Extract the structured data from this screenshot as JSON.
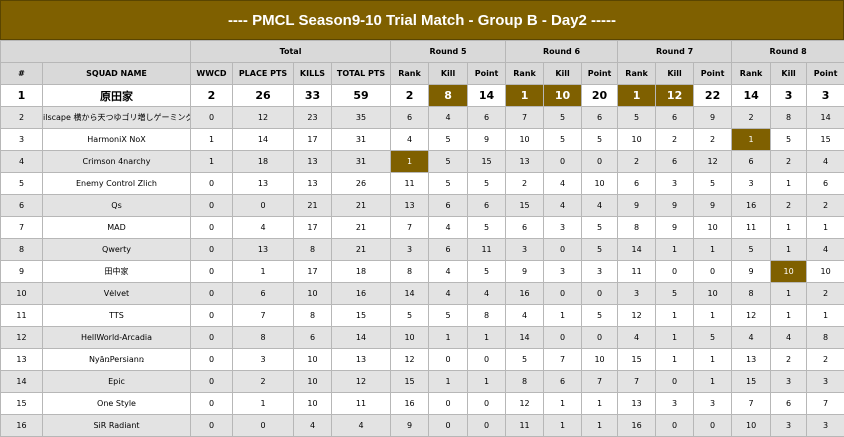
{
  "header": {
    "title": "---- PMCL Season9-10 Trial Match - Group B - Day2 -----"
  },
  "table": {
    "groups": [
      "Total",
      "Round 5",
      "Round 6",
      "Round 7",
      "Round 8"
    ],
    "columns": [
      "#",
      "SQUAD NAME",
      "WWCD",
      "PLACE PTS",
      "KILLS",
      "TOTAL PTS",
      "Rank",
      "Kill",
      "Point",
      "Rank",
      "Kill",
      "Point",
      "Rank",
      "Kill",
      "Point",
      "Rank",
      "Kill",
      "Point"
    ],
    "rows": [
      [
        1,
        "原田家",
        2,
        26,
        33,
        59,
        2,
        8,
        14,
        1,
        10,
        20,
        1,
        12,
        22,
        14,
        3,
        3
      ],
      [
        2,
        "ilscape 横から天つゆゴリ増しゲーミング",
        0,
        12,
        23,
        35,
        6,
        4,
        6,
        7,
        5,
        6,
        5,
        6,
        9,
        2,
        8,
        14
      ],
      [
        3,
        "HarmoniX NoX",
        1,
        14,
        17,
        31,
        4,
        5,
        9,
        10,
        5,
        5,
        10,
        2,
        2,
        1,
        5,
        15
      ],
      [
        4,
        "Crimson 4narchy",
        1,
        18,
        13,
        31,
        1,
        5,
        15,
        13,
        0,
        0,
        2,
        6,
        12,
        6,
        2,
        4
      ],
      [
        5,
        "Enemy Control Zlich",
        0,
        13,
        13,
        26,
        11,
        5,
        5,
        2,
        4,
        10,
        6,
        3,
        5,
        3,
        1,
        6
      ],
      [
        6,
        "Qs",
        0,
        0,
        21,
        21,
        13,
        6,
        6,
        15,
        4,
        4,
        9,
        9,
        9,
        16,
        2,
        2
      ],
      [
        7,
        "MAD",
        0,
        4,
        17,
        21,
        7,
        4,
        5,
        6,
        3,
        5,
        8,
        9,
        10,
        11,
        1,
        1
      ],
      [
        8,
        "Qwerty",
        0,
        13,
        8,
        21,
        3,
        6,
        11,
        3,
        0,
        5,
        14,
        1,
        1,
        5,
        1,
        4
      ],
      [
        9,
        "田中家",
        0,
        1,
        17,
        18,
        8,
        4,
        5,
        9,
        3,
        3,
        11,
        0,
        0,
        9,
        10,
        10
      ],
      [
        10,
        "Vėlvet",
        0,
        6,
        10,
        16,
        14,
        4,
        4,
        16,
        0,
        0,
        3,
        5,
        10,
        8,
        1,
        2
      ],
      [
        11,
        "TTS",
        0,
        7,
        8,
        15,
        5,
        5,
        8,
        4,
        1,
        5,
        12,
        1,
        1,
        12,
        1,
        1
      ],
      [
        12,
        "HellWorld-Arcadia",
        0,
        8,
        6,
        14,
        10,
        1,
        1,
        14,
        0,
        0,
        4,
        1,
        5,
        4,
        4,
        8
      ],
      [
        13,
        "NyāռPersianռ",
        0,
        3,
        10,
        13,
        12,
        0,
        0,
        5,
        7,
        10,
        15,
        1,
        1,
        13,
        2,
        2
      ],
      [
        14,
        "Epic",
        0,
        2,
        10,
        12,
        15,
        1,
        1,
        8,
        6,
        7,
        7,
        0,
        1,
        15,
        3,
        3
      ],
      [
        15,
        "One Style",
        0,
        1,
        10,
        11,
        16,
        0,
        0,
        12,
        1,
        1,
        13,
        3,
        3,
        7,
        6,
        7
      ],
      [
        16,
        "SiR Radiant",
        0,
        0,
        4,
        4,
        9,
        0,
        0,
        11,
        1,
        1,
        16,
        0,
        0,
        10,
        3,
        3
      ]
    ]
  }
}
